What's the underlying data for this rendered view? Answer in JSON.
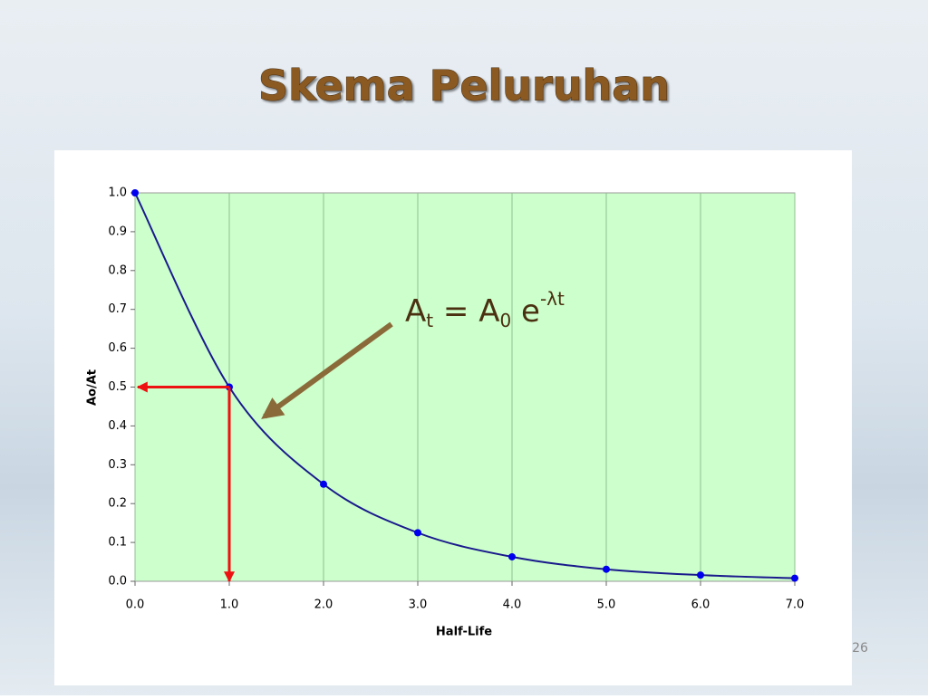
{
  "chart_data": {
    "type": "line",
    "title": "Skema Peluruhan",
    "slide_number": "26",
    "x_label": "Half-Life",
    "y_label": "Ao/At",
    "equation": [
      "A",
      "t",
      " = A",
      "0",
      " e",
      "-λt"
    ],
    "x": [
      0,
      1,
      2,
      3,
      4,
      5,
      6,
      7
    ],
    "series": [
      {
        "name": "Ao/At",
        "color": "#1a1a8c",
        "marker_color": "#0000ee",
        "values": [
          1.0,
          0.5,
          0.25,
          0.125,
          0.063,
          0.031,
          0.016,
          0.008
        ]
      }
    ],
    "xlim": [
      0,
      7
    ],
    "ylim": [
      0,
      1
    ],
    "xticks": [
      {
        "value": 0,
        "label": "0.0"
      },
      {
        "value": 1,
        "label": "1.0"
      },
      {
        "value": 2,
        "label": "2.0"
      },
      {
        "value": 3,
        "label": "3.0"
      },
      {
        "value": 4,
        "label": "4.0"
      },
      {
        "value": 5,
        "label": "5.0"
      },
      {
        "value": 6,
        "label": "6.0"
      },
      {
        "value": 7,
        "label": "7.0"
      }
    ],
    "yticks": [
      {
        "value": 0,
        "label": "0.0"
      },
      {
        "value": 0.1,
        "label": "0.1"
      },
      {
        "value": 0.2,
        "label": "0.2"
      },
      {
        "value": 0.3,
        "label": "0.3"
      },
      {
        "value": 0.4,
        "label": "0.4"
      },
      {
        "value": 0.5,
        "label": "0.5"
      },
      {
        "value": 0.6,
        "label": "0.6"
      },
      {
        "value": 0.7,
        "label": "0.7"
      },
      {
        "value": 0.8,
        "label": "0.8"
      },
      {
        "value": 0.9,
        "label": "0.9"
      },
      {
        "value": 1,
        "label": "1.0"
      }
    ],
    "grid": "x",
    "plot_background": "#ccffcc"
  }
}
